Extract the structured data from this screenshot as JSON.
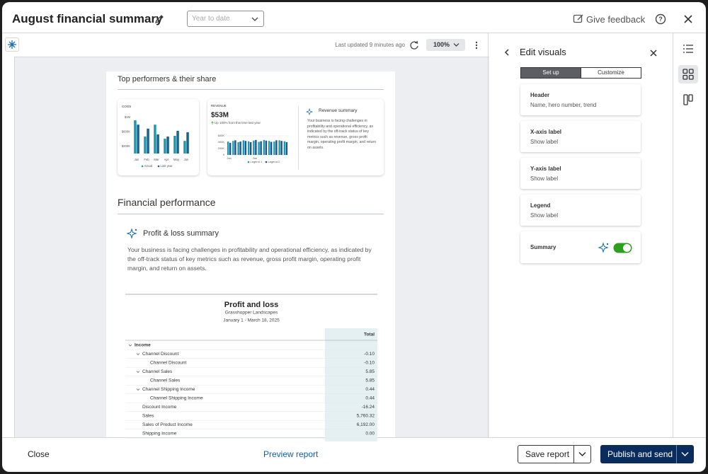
{
  "header": {
    "title": "August financial summary",
    "date_select": "Year to date",
    "feedback": "Give feedback"
  },
  "toolbar": {
    "last_updated": "Last updated 9 minutes ago",
    "zoom": "100%"
  },
  "report": {
    "section1_title": "Top performers & their share",
    "revenue_summary": {
      "title": "Revenue summary",
      "text": "Your business is facing challenges in profitability and operational efficiency, as indicated by the off-track status of key metrics such as revenue, gross profit margin, operating profit margin, and return on assets."
    },
    "section2_title": "Financial performance",
    "pl_summary": {
      "title": "Profit & loss summary",
      "text": "Your business is facing challenges in profitability and operational efficiency, as indicated by the off-track status of key metrics such as revenue, gross profit margin, operating profit margin, and return on assets."
    },
    "pl_table": {
      "title": "Profit and loss",
      "company": "Grasshopper Landscapes",
      "period": "January 1 - March 18, 2025",
      "column": "Total",
      "rows": [
        {
          "label": "Income"
        },
        {
          "label": "Channel Discount",
          "value": "-0.10"
        },
        {
          "label": "Channel Discount",
          "value": "-0.10"
        },
        {
          "label": "Channel Sales",
          "value": "5.85"
        },
        {
          "label": "Channel Sales",
          "value": "5.85"
        },
        {
          "label": "Channel Shipping Income",
          "value": "0.44"
        },
        {
          "label": "Channel Shipping Income",
          "value": "0.44"
        },
        {
          "label": "Discount Income",
          "value": "-16.24"
        },
        {
          "label": "Sales",
          "value": "5,760.32"
        },
        {
          "label": "Sales of Product Income",
          "value": "6,192.00"
        },
        {
          "label": "Shipping Income",
          "value": "0.00"
        }
      ]
    }
  },
  "chart_data": [
    {
      "type": "bar",
      "title": "COGS",
      "categories": [
        "Jan",
        "Feb",
        "Mar",
        "Apr",
        "May",
        "Jun"
      ],
      "series": [
        {
          "name": "Actual",
          "color": "#1a9ab0",
          "values": [
            920000,
            470000,
            800000,
            410000,
            490000,
            350000
          ]
        },
        {
          "name": "Last year",
          "color": "#1f5f8b",
          "values": [
            800000,
            690000,
            530000,
            470000,
            630000,
            590000
          ]
        }
      ],
      "ylim": [
        0,
        1000000
      ],
      "yticks": [
        {
          "value": 200000,
          "label": "$200K"
        },
        {
          "value": 600000,
          "label": "$600K"
        },
        {
          "value": 1000000,
          "label": "$1M"
        }
      ],
      "grid": false,
      "legend": "bottom"
    },
    {
      "type": "bar",
      "title": "REVENUE",
      "hero_value": "$53M",
      "trend": "Up 100% from this time last year",
      "categories": [
        "Jan",
        null,
        null,
        null,
        null,
        "Jun",
        null,
        null,
        null,
        null,
        null,
        null
      ],
      "series": [
        {
          "name": "Legend 1",
          "color": "#1a9ab0",
          "values": [
            420000,
            440000,
            400000,
            460000,
            430000,
            450000,
            410000,
            470000,
            440000,
            420000,
            460000,
            430000
          ]
        },
        {
          "name": "Legend 2",
          "color": "#1f4f8c",
          "values": [
            380000,
            460000,
            420000,
            440000,
            400000,
            470000,
            430000,
            450000,
            410000,
            460000,
            440000,
            400000
          ]
        }
      ],
      "ylim": [
        0,
        600000
      ],
      "yticks": [
        0,
        {
          "value": 200000,
          "label": "200K"
        },
        {
          "value": 400000,
          "label": "400K"
        },
        {
          "value": 600000,
          "label": "600K"
        }
      ],
      "grid": true,
      "legend": "bottom"
    }
  ],
  "panel": {
    "title": "Edit visuals",
    "tabs": [
      "Set up",
      "Customize"
    ],
    "cards": [
      {
        "title": "Header",
        "subtitle": "Name, hero number, trend"
      },
      {
        "title": "X-axis label",
        "subtitle": "Show label"
      },
      {
        "title": "Y-axis label",
        "subtitle": "Show label"
      },
      {
        "title": "Legend",
        "subtitle": "Show label"
      },
      {
        "title": "Summary"
      }
    ]
  },
  "footer": {
    "close": "Close",
    "preview": "Preview report",
    "save": "Save report",
    "publish": "Publish and send"
  }
}
